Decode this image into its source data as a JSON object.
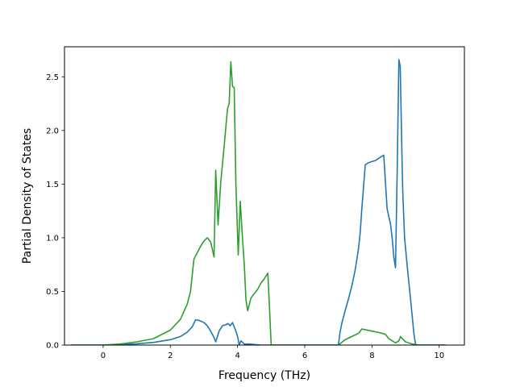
{
  "chart_data": {
    "type": "line",
    "title": "",
    "xlabel": "Frequency (THz)",
    "ylabel": "Partial Density of States",
    "xlim": [
      -1.15,
      10.75
    ],
    "ylim": [
      0,
      2.78
    ],
    "grid": false,
    "x_ticks": [
      0,
      2,
      4,
      6,
      8,
      10
    ],
    "x_tick_labels": [
      "0",
      "2",
      "4",
      "6",
      "8",
      "10"
    ],
    "y_ticks": [
      0.0,
      0.5,
      1.0,
      1.5,
      2.0,
      2.5
    ],
    "y_tick_labels": [
      "0.0",
      "0.5",
      "1.0",
      "1.5",
      "2.0",
      "2.5"
    ],
    "series": [
      {
        "color": "#1f77b4",
        "x": [
          -0.95,
          0.0,
          0.5,
          1.0,
          1.5,
          2.0,
          2.3,
          2.5,
          2.65,
          2.75,
          2.85,
          3.0,
          3.1,
          3.2,
          3.3,
          3.35,
          3.45,
          3.55,
          3.65,
          3.72,
          3.78,
          3.85,
          3.95,
          4.0,
          4.05,
          4.1,
          4.2,
          4.35,
          4.5,
          4.7,
          4.9,
          5.0,
          5.5,
          6.0,
          6.5,
          7.0,
          7.05,
          7.1,
          7.2,
          7.3,
          7.4,
          7.5,
          7.6,
          7.65,
          7.7,
          7.8,
          7.9,
          8.0,
          8.1,
          8.2,
          8.3,
          8.35,
          8.45,
          8.55,
          8.6,
          8.65,
          8.7,
          8.75,
          8.8,
          8.84,
          8.9,
          8.92,
          8.97,
          9.05,
          9.15,
          9.25,
          9.3,
          9.5,
          10.0,
          10.2
        ],
        "y": [
          0.0,
          0.0,
          0.005,
          0.012,
          0.025,
          0.05,
          0.08,
          0.12,
          0.17,
          0.235,
          0.23,
          0.21,
          0.18,
          0.13,
          0.07,
          0.03,
          0.13,
          0.18,
          0.19,
          0.2,
          0.18,
          0.21,
          0.13,
          0.08,
          0.0,
          0.04,
          0.01,
          0.01,
          0.005,
          0.0,
          0.0,
          0.0,
          0.0,
          0.0,
          0.0,
          0.0,
          0.12,
          0.2,
          0.32,
          0.43,
          0.55,
          0.7,
          0.9,
          1.05,
          1.28,
          1.68,
          1.7,
          1.71,
          1.72,
          1.74,
          1.76,
          1.77,
          1.27,
          1.13,
          1.0,
          0.82,
          0.72,
          1.62,
          2.66,
          2.6,
          1.64,
          1.39,
          1.0,
          0.73,
          0.42,
          0.1,
          0.0,
          0.0,
          0.0,
          0.0
        ]
      },
      {
        "color": "#2ca02c",
        "x": [
          -0.95,
          0.0,
          0.5,
          1.0,
          1.5,
          2.0,
          2.3,
          2.5,
          2.6,
          2.7,
          2.8,
          2.9,
          3.0,
          3.1,
          3.2,
          3.3,
          3.35,
          3.42,
          3.5,
          3.6,
          3.7,
          3.75,
          3.8,
          3.85,
          3.9,
          3.95,
          4.02,
          4.08,
          4.15,
          4.2,
          4.25,
          4.3,
          4.4,
          4.5,
          4.6,
          4.7,
          4.78,
          4.9,
          4.95,
          5.0,
          5.5,
          6.0,
          6.5,
          7.0,
          7.2,
          7.4,
          7.6,
          7.7,
          8.0,
          8.3,
          8.4,
          8.5,
          8.6,
          8.7,
          8.8,
          8.85,
          8.9,
          9.0,
          9.2,
          9.4,
          10.0,
          10.2
        ],
        "y": [
          0.0,
          0.0,
          0.01,
          0.03,
          0.06,
          0.14,
          0.24,
          0.38,
          0.5,
          0.8,
          0.86,
          0.92,
          0.97,
          1.0,
          0.96,
          0.82,
          1.63,
          1.12,
          1.52,
          1.85,
          2.2,
          2.25,
          2.64,
          2.41,
          2.4,
          1.5,
          0.84,
          1.34,
          0.98,
          0.75,
          0.42,
          0.32,
          0.44,
          0.48,
          0.52,
          0.58,
          0.61,
          0.67,
          0.35,
          0.0,
          0.0,
          0.0,
          0.0,
          0.0,
          0.05,
          0.08,
          0.11,
          0.15,
          0.13,
          0.11,
          0.1,
          0.06,
          0.04,
          0.02,
          0.04,
          0.08,
          0.06,
          0.03,
          0.01,
          0.0,
          0.0,
          0.0
        ]
      }
    ]
  }
}
